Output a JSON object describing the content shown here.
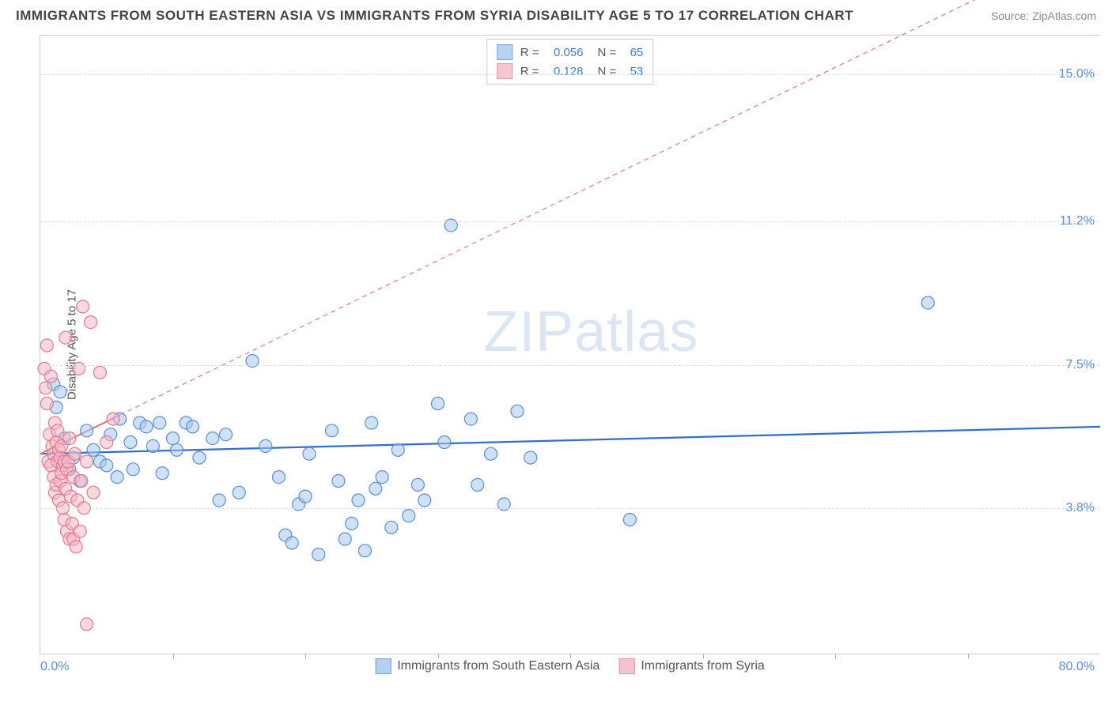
{
  "title": "IMMIGRANTS FROM SOUTH EASTERN ASIA VS IMMIGRANTS FROM SYRIA DISABILITY AGE 5 TO 17 CORRELATION CHART",
  "source": "Source: ZipAtlas.com",
  "y_axis_title": "Disability Age 5 to 17",
  "watermark_bold": "ZIP",
  "watermark_light": "atlas",
  "chart": {
    "type": "scatter",
    "background_color": "#ffffff",
    "grid_color": "#dddddd",
    "axis_color": "#cccccc",
    "xlim": [
      0,
      80
    ],
    "ylim": [
      0,
      16
    ],
    "x_ticks": [
      10,
      20,
      30,
      40,
      50,
      60,
      70
    ],
    "y_ticks": [
      {
        "v": 3.8,
        "label": "3.8%"
      },
      {
        "v": 7.5,
        "label": "7.5%"
      },
      {
        "v": 11.2,
        "label": "11.2%"
      },
      {
        "v": 15.0,
        "label": "15.0%"
      }
    ],
    "x_min_label": "0.0%",
    "x_max_label": "80.0%",
    "marker_radius": 8,
    "marker_stroke_width": 1.2,
    "series": [
      {
        "id": "sea",
        "name": "Immigrants from South Eastern Asia",
        "fill": "#a8c8ec",
        "stroke": "#5b8dd6",
        "fill_opacity": 0.55,
        "r_value": "0.056",
        "n_value": "65",
        "trend": {
          "x1": 0,
          "y1": 5.2,
          "x2": 80,
          "y2": 5.9,
          "stroke": "#2f6fd0",
          "width": 2.2,
          "dash": ""
        },
        "points": [
          [
            1.0,
            7.0
          ],
          [
            1.2,
            6.4
          ],
          [
            1.5,
            6.8
          ],
          [
            1.5,
            5.0
          ],
          [
            1.8,
            5.6
          ],
          [
            2.2,
            4.8
          ],
          [
            2.5,
            5.1
          ],
          [
            3.0,
            4.5
          ],
          [
            3.5,
            5.8
          ],
          [
            4.0,
            5.3
          ],
          [
            4.5,
            5.0
          ],
          [
            5.0,
            4.9
          ],
          [
            5.3,
            5.7
          ],
          [
            5.8,
            4.6
          ],
          [
            6.0,
            6.1
          ],
          [
            6.8,
            5.5
          ],
          [
            7.0,
            4.8
          ],
          [
            7.5,
            6.0
          ],
          [
            8.0,
            5.9
          ],
          [
            8.5,
            5.4
          ],
          [
            9.0,
            6.0
          ],
          [
            9.2,
            4.7
          ],
          [
            10.0,
            5.6
          ],
          [
            10.3,
            5.3
          ],
          [
            11.0,
            6.0
          ],
          [
            11.5,
            5.9
          ],
          [
            12.0,
            5.1
          ],
          [
            13.0,
            5.6
          ],
          [
            13.5,
            4.0
          ],
          [
            14.0,
            5.7
          ],
          [
            15.0,
            4.2
          ],
          [
            16.0,
            7.6
          ],
          [
            17.0,
            5.4
          ],
          [
            18.0,
            4.6
          ],
          [
            18.5,
            3.1
          ],
          [
            19.0,
            2.9
          ],
          [
            19.5,
            3.9
          ],
          [
            20.0,
            4.1
          ],
          [
            20.3,
            5.2
          ],
          [
            21.0,
            2.6
          ],
          [
            22.0,
            5.8
          ],
          [
            22.5,
            4.5
          ],
          [
            23.0,
            3.0
          ],
          [
            23.5,
            3.4
          ],
          [
            24.0,
            4.0
          ],
          [
            24.5,
            2.7
          ],
          [
            25.0,
            6.0
          ],
          [
            25.3,
            4.3
          ],
          [
            25.8,
            4.6
          ],
          [
            26.5,
            3.3
          ],
          [
            27.0,
            5.3
          ],
          [
            27.8,
            3.6
          ],
          [
            28.5,
            4.4
          ],
          [
            29.0,
            4.0
          ],
          [
            30.0,
            6.5
          ],
          [
            30.5,
            5.5
          ],
          [
            31.0,
            11.1
          ],
          [
            32.5,
            6.1
          ],
          [
            33.0,
            4.4
          ],
          [
            34.0,
            5.2
          ],
          [
            35.0,
            3.9
          ],
          [
            36.0,
            6.3
          ],
          [
            37.0,
            5.1
          ],
          [
            44.5,
            3.5
          ],
          [
            67.0,
            9.1
          ]
        ]
      },
      {
        "id": "syria",
        "name": "Immigrants from Syria",
        "fill": "#f5b8c5",
        "stroke": "#e07a90",
        "fill_opacity": 0.55,
        "r_value": "0.128",
        "n_value": "53",
        "trend": {
          "x1": 0,
          "y1": 5.2,
          "x2": 6,
          "y2": 6.2,
          "stroke": "#e07a90",
          "width": 2.2,
          "dash": "",
          "extrap": {
            "x1": 6,
            "y1": 6.2,
            "x2": 80,
            "y2": 18.5,
            "dash": "6,5"
          }
        },
        "points": [
          [
            0.3,
            7.4
          ],
          [
            0.4,
            6.9
          ],
          [
            0.5,
            6.5
          ],
          [
            0.5,
            8.0
          ],
          [
            0.6,
            5.0
          ],
          [
            0.7,
            5.7
          ],
          [
            0.8,
            4.9
          ],
          [
            0.8,
            7.2
          ],
          [
            0.9,
            5.4
          ],
          [
            1.0,
            4.6
          ],
          [
            1.0,
            5.2
          ],
          [
            1.1,
            4.2
          ],
          [
            1.1,
            6.0
          ],
          [
            1.2,
            5.5
          ],
          [
            1.2,
            4.4
          ],
          [
            1.3,
            5.0
          ],
          [
            1.3,
            5.8
          ],
          [
            1.4,
            4.0
          ],
          [
            1.4,
            5.3
          ],
          [
            1.5,
            4.5
          ],
          [
            1.5,
            5.1
          ],
          [
            1.6,
            4.7
          ],
          [
            1.6,
            5.4
          ],
          [
            1.7,
            3.8
          ],
          [
            1.7,
            4.9
          ],
          [
            1.8,
            5.0
          ],
          [
            1.8,
            3.5
          ],
          [
            1.9,
            4.3
          ],
          [
            1.9,
            8.2
          ],
          [
            2.0,
            4.8
          ],
          [
            2.0,
            3.2
          ],
          [
            2.1,
            5.0
          ],
          [
            2.2,
            3.0
          ],
          [
            2.2,
            5.6
          ],
          [
            2.3,
            4.1
          ],
          [
            2.4,
            3.4
          ],
          [
            2.5,
            4.6
          ],
          [
            2.5,
            3.0
          ],
          [
            2.6,
            5.2
          ],
          [
            2.7,
            2.8
          ],
          [
            2.8,
            4.0
          ],
          [
            2.9,
            7.4
          ],
          [
            3.0,
            3.2
          ],
          [
            3.1,
            4.5
          ],
          [
            3.2,
            9.0
          ],
          [
            3.3,
            3.8
          ],
          [
            3.5,
            5.0
          ],
          [
            3.8,
            8.6
          ],
          [
            4.0,
            4.2
          ],
          [
            4.5,
            7.3
          ],
          [
            5.0,
            5.5
          ],
          [
            5.5,
            6.1
          ],
          [
            3.5,
            0.8
          ]
        ]
      }
    ],
    "legend_top": {
      "r_label": "R =",
      "n_label": "N ="
    },
    "legend_bottom_order": [
      "sea",
      "syria"
    ]
  }
}
